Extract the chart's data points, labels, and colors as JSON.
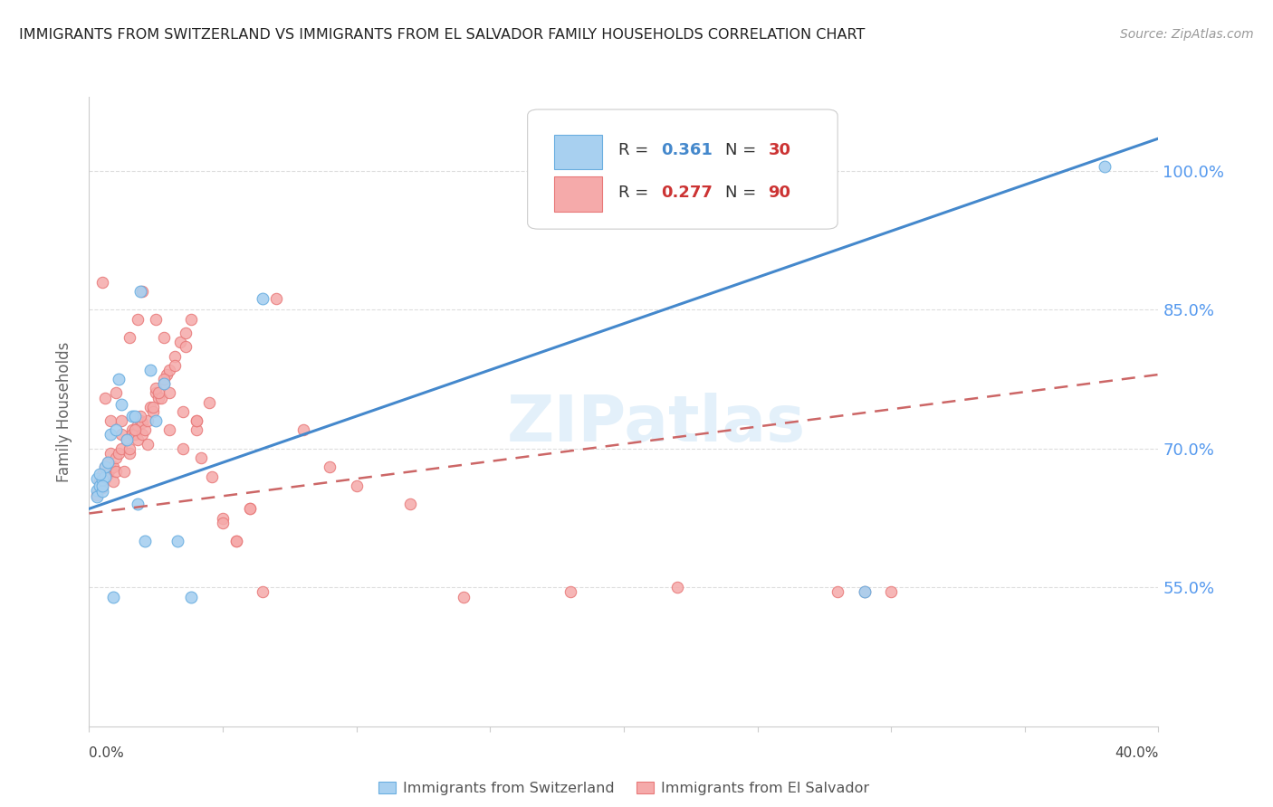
{
  "title": "IMMIGRANTS FROM SWITZERLAND VS IMMIGRANTS FROM EL SALVADOR FAMILY HOUSEHOLDS CORRELATION CHART",
  "source": "Source: ZipAtlas.com",
  "ylabel": "Family Households",
  "legend_blue_r": "R = 0.361",
  "legend_blue_n": "N = 30",
  "legend_pink_r": "R = 0.277",
  "legend_pink_n": "N = 90",
  "blue_color": "#a8d0f0",
  "blue_edge": "#6aaee0",
  "pink_color": "#f5aaaa",
  "pink_edge": "#e87878",
  "blue_line_color": "#4488cc",
  "pink_line_color": "#cc6666",
  "right_label_color": "#5599ee",
  "ytick_labels": [
    "55.0%",
    "70.0%",
    "85.0%",
    "100.0%"
  ],
  "ytick_vals": [
    0.55,
    0.7,
    0.85,
    1.0
  ],
  "xlim": [
    0.0,
    0.4
  ],
  "ylim": [
    0.4,
    1.08
  ],
  "blue_line": [
    [
      0.0,
      0.4
    ],
    [
      0.635,
      1.035
    ]
  ],
  "pink_line": [
    [
      0.0,
      0.4
    ],
    [
      0.63,
      0.78
    ]
  ],
  "blue_x": [
    0.003,
    0.003,
    0.003,
    0.004,
    0.005,
    0.005,
    0.006,
    0.006,
    0.007,
    0.008,
    0.009,
    0.01,
    0.011,
    0.012,
    0.014,
    0.016,
    0.017,
    0.018,
    0.019,
    0.021,
    0.023,
    0.025,
    0.028,
    0.033,
    0.038,
    0.065,
    0.29,
    0.38,
    0.004,
    0.005
  ],
  "blue_y": [
    0.668,
    0.655,
    0.648,
    0.66,
    0.654,
    0.667,
    0.67,
    0.68,
    0.685,
    0.715,
    0.54,
    0.72,
    0.775,
    0.748,
    0.71,
    0.735,
    0.735,
    0.64,
    0.87,
    0.6,
    0.785,
    0.73,
    0.77,
    0.6,
    0.54,
    0.862,
    0.545,
    1.005,
    0.672,
    0.66
  ],
  "pink_x": [
    0.003,
    0.004,
    0.005,
    0.005,
    0.006,
    0.006,
    0.007,
    0.007,
    0.008,
    0.008,
    0.009,
    0.009,
    0.01,
    0.01,
    0.011,
    0.012,
    0.012,
    0.013,
    0.014,
    0.015,
    0.016,
    0.016,
    0.017,
    0.018,
    0.018,
    0.019,
    0.02,
    0.02,
    0.021,
    0.022,
    0.023,
    0.024,
    0.025,
    0.026,
    0.027,
    0.028,
    0.029,
    0.03,
    0.032,
    0.034,
    0.036,
    0.038,
    0.04,
    0.042,
    0.046,
    0.05,
    0.055,
    0.06,
    0.065,
    0.07,
    0.08,
    0.09,
    0.1,
    0.12,
    0.14,
    0.18,
    0.22,
    0.28,
    0.29,
    0.3,
    0.005,
    0.006,
    0.008,
    0.01,
    0.012,
    0.015,
    0.018,
    0.02,
    0.025,
    0.028,
    0.03,
    0.035,
    0.04,
    0.05,
    0.055,
    0.06,
    0.025,
    0.03,
    0.035,
    0.022,
    0.024,
    0.026,
    0.028,
    0.032,
    0.036,
    0.04,
    0.045,
    0.015,
    0.017,
    0.019
  ],
  "pink_y": [
    0.65,
    0.665,
    0.658,
    0.672,
    0.668,
    0.68,
    0.672,
    0.685,
    0.678,
    0.695,
    0.665,
    0.68,
    0.675,
    0.69,
    0.695,
    0.7,
    0.715,
    0.675,
    0.71,
    0.695,
    0.72,
    0.715,
    0.715,
    0.71,
    0.725,
    0.73,
    0.715,
    0.728,
    0.72,
    0.73,
    0.745,
    0.74,
    0.76,
    0.755,
    0.755,
    0.77,
    0.78,
    0.785,
    0.8,
    0.815,
    0.825,
    0.84,
    0.72,
    0.69,
    0.67,
    0.625,
    0.6,
    0.635,
    0.545,
    0.862,
    0.72,
    0.68,
    0.66,
    0.64,
    0.54,
    0.545,
    0.55,
    0.545,
    0.545,
    0.545,
    0.88,
    0.755,
    0.73,
    0.76,
    0.73,
    0.82,
    0.84,
    0.87,
    0.84,
    0.82,
    0.72,
    0.7,
    0.73,
    0.62,
    0.6,
    0.635,
    0.765,
    0.76,
    0.74,
    0.705,
    0.745,
    0.76,
    0.775,
    0.79,
    0.81,
    0.73,
    0.75,
    0.7,
    0.72,
    0.735
  ]
}
